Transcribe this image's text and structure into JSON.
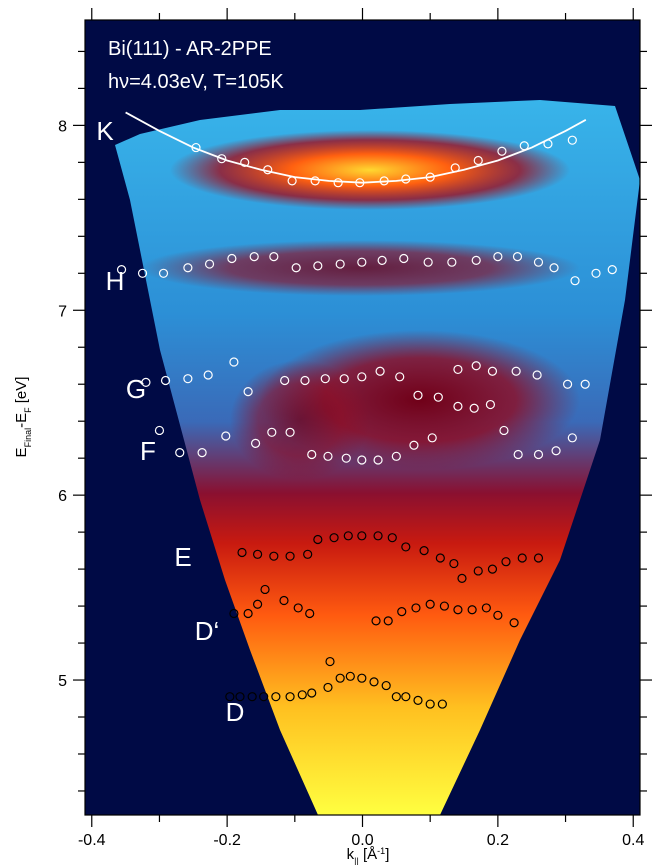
{
  "chart_data": {
    "type": "scatter",
    "title": "Bi(111) - AR-2PPE",
    "subtitle": "hν=4.03eV, T=105K",
    "xlabel": [
      {
        "text": "k"
      },
      {
        "text": "||",
        "sub": true
      },
      {
        "text": " [Å"
      },
      {
        "text": "-1",
        "sup": true
      },
      {
        "text": "]"
      }
    ],
    "ylabel": [
      {
        "text": "E"
      },
      {
        "text": "Final",
        "sub": true
      },
      {
        "text": "-E"
      },
      {
        "text": "F",
        "sub": true
      },
      {
        "text": " [eV]"
      }
    ],
    "xlim": [
      -0.41,
      0.41
    ],
    "ylim": [
      4.27,
      8.57
    ],
    "xticks": [
      -0.4,
      -0.2,
      {
        "value": 0,
        "label": "0.0"
      },
      0.2,
      0.4
    ],
    "yticks": [
      5,
      6,
      7,
      8
    ],
    "xminor_ticks": [
      -0.3,
      -0.1,
      0.1,
      0.3
    ],
    "yminor_ticks": [
      4.4,
      4.6,
      4.8,
      5.2,
      5.4,
      5.6,
      5.8,
      6.2,
      6.4,
      6.6,
      6.8,
      7.2,
      7.4,
      7.6,
      7.8,
      8.2,
      8.4
    ],
    "fit": {
      "color": "#ffffff",
      "x": [
        -0.35,
        -0.3,
        -0.25,
        -0.2,
        -0.15,
        -0.1,
        -0.05,
        0,
        0.05,
        0.1,
        0.15,
        0.2,
        0.25,
        0.3,
        0.33
      ],
      "values": [
        8.07,
        7.97,
        7.88,
        7.81,
        7.76,
        7.72,
        7.7,
        7.69,
        7.7,
        7.72,
        7.76,
        7.81,
        7.88,
        7.97,
        8.03
      ]
    },
    "series": [
      {
        "name": "K",
        "color": "#ffffff",
        "x": [
          -0.246,
          -0.208,
          -0.174,
          -0.14,
          -0.104,
          -0.07,
          -0.036,
          -0.004,
          0.032,
          0.064,
          0.1,
          0.137,
          0.171,
          0.206,
          0.239,
          0.274,
          0.31
        ],
        "values": [
          7.88,
          7.82,
          7.8,
          7.76,
          7.7,
          7.7,
          7.69,
          7.69,
          7.7,
          7.71,
          7.72,
          7.77,
          7.81,
          7.86,
          7.89,
          7.9,
          7.92
        ]
      },
      {
        "name": "H",
        "color": "#ffffff",
        "x": [
          -0.356,
          -0.325,
          -0.294,
          -0.258,
          -0.226,
          -0.193,
          -0.16,
          -0.131,
          -0.098,
          -0.066,
          -0.033,
          -0.001,
          0.029,
          0.061,
          0.097,
          0.132,
          0.168,
          0.2,
          0.229,
          0.26,
          0.283,
          0.314,
          0.345,
          0.369
        ],
        "values": [
          7.22,
          7.2,
          7.2,
          7.23,
          7.25,
          7.28,
          7.29,
          7.29,
          7.23,
          7.24,
          7.25,
          7.26,
          7.27,
          7.28,
          7.26,
          7.26,
          7.27,
          7.29,
          7.29,
          7.26,
          7.23,
          7.16,
          7.2,
          7.22
        ]
      },
      {
        "name": "G",
        "color": "#ffffff",
        "x": [
          -0.32,
          -0.291,
          -0.258,
          -0.228,
          -0.19,
          -0.169,
          -0.115,
          -0.085,
          -0.055,
          -0.027,
          -0.001,
          0.026,
          0.055,
          0.082,
          0.112,
          0.141,
          0.168,
          0.192,
          0.227,
          0.258,
          0.303,
          0.329,
          0.141,
          0.165,
          0.189
        ],
        "values": [
          6.61,
          6.62,
          6.63,
          6.65,
          6.72,
          6.56,
          6.62,
          6.62,
          6.63,
          6.63,
          6.64,
          6.67,
          6.64,
          6.54,
          6.53,
          6.68,
          6.7,
          6.67,
          6.67,
          6.65,
          6.6,
          6.6,
          6.48,
          6.47,
          6.49
        ]
      },
      {
        "name": "F",
        "color": "#ffffff",
        "x": [
          -0.3,
          -0.27,
          -0.237,
          -0.202,
          -0.158,
          -0.134,
          -0.107,
          -0.075,
          -0.051,
          -0.024,
          -0.001,
          0.023,
          0.05,
          0.076,
          0.103,
          0.209,
          0.23,
          0.26,
          0.286,
          0.31
        ],
        "values": [
          6.35,
          6.23,
          6.23,
          6.32,
          6.28,
          6.34,
          6.34,
          6.22,
          6.21,
          6.2,
          6.19,
          6.19,
          6.21,
          6.27,
          6.31,
          6.35,
          6.22,
          6.22,
          6.24,
          6.31
        ]
      },
      {
        "name": "E",
        "color": "#000000",
        "x": [
          -0.178,
          -0.155,
          -0.131,
          -0.107,
          -0.081,
          -0.066,
          -0.042,
          -0.021,
          -0.001,
          0.023,
          0.044,
          0.064,
          0.091,
          0.115,
          0.135,
          0.147,
          0.171,
          0.192,
          0.212,
          0.236,
          0.26
        ],
        "values": [
          5.69,
          5.68,
          5.67,
          5.67,
          5.68,
          5.76,
          5.77,
          5.78,
          5.78,
          5.78,
          5.77,
          5.72,
          5.7,
          5.66,
          5.63,
          5.55,
          5.59,
          5.6,
          5.64,
          5.66,
          5.66
        ]
      },
      {
        "name": "D‘",
        "color": "#000000",
        "x": [
          -0.19,
          -0.169,
          -0.155,
          -0.144,
          -0.116,
          -0.095,
          -0.078,
          0.02,
          0.038,
          0.058,
          0.079,
          0.1,
          0.121,
          0.141,
          0.162,
          0.183,
          0.2,
          0.224
        ],
        "values": [
          5.36,
          5.36,
          5.41,
          5.49,
          5.43,
          5.39,
          5.36,
          5.32,
          5.32,
          5.37,
          5.39,
          5.41,
          5.4,
          5.38,
          5.38,
          5.39,
          5.35,
          5.31
        ]
      },
      {
        "name": "D",
        "color": "#000000",
        "x": [
          -0.196,
          -0.181,
          -0.163,
          -0.146,
          -0.128,
          -0.107,
          -0.089,
          -0.075,
          -0.051,
          -0.033,
          -0.018,
          -0.001,
          0.017,
          0.035,
          0.05,
          0.064,
          0.082,
          0.1,
          0.118,
          -0.048
        ],
        "values": [
          4.91,
          4.91,
          4.91,
          4.91,
          4.91,
          4.91,
          4.92,
          4.93,
          4.96,
          5.01,
          5.02,
          5.01,
          4.99,
          4.97,
          4.91,
          4.91,
          4.89,
          4.87,
          4.87,
          5.1
        ]
      }
    ]
  }
}
